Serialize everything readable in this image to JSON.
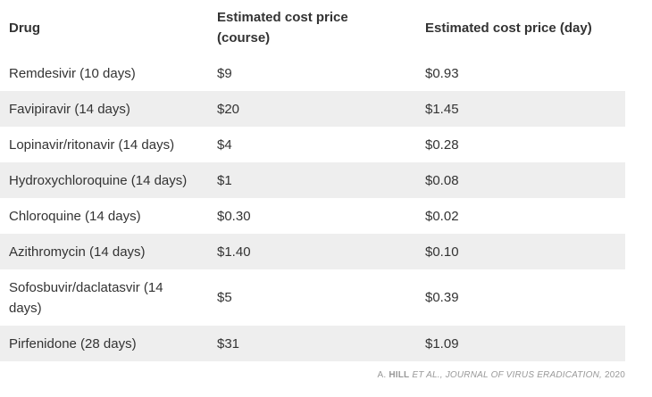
{
  "table": {
    "header": [
      "Drug",
      "Estimated cost price (course)",
      "Estimated cost price (day)"
    ],
    "rows": [
      [
        "Remdesivir (10 days)",
        "$9",
        "$0.93"
      ],
      [
        "Favipiravir (14 days)",
        "$20",
        "$1.45"
      ],
      [
        "Lopinavir/ritonavir (14 days)",
        "$4",
        "$0.28"
      ],
      [
        "Hydroxychloroquine (14 days)",
        "$1",
        "$0.08"
      ],
      [
        "Chloroquine (14 days)",
        "$0.30",
        "$0.02"
      ],
      [
        "Azithromycin (14 days)",
        "$1.40",
        "$0.10"
      ],
      [
        "Sofosbuvir/daclatasvir (14 days)",
        "$5",
        "$0.39"
      ],
      [
        "Pirfenidone (28 days)",
        "$31",
        "$1.09"
      ]
    ]
  },
  "caption": {
    "initial": "A.",
    "author": "HILL",
    "rest": "ET AL., JOURNAL OF VIRUS ERADICATION,",
    "year": "2020"
  }
}
